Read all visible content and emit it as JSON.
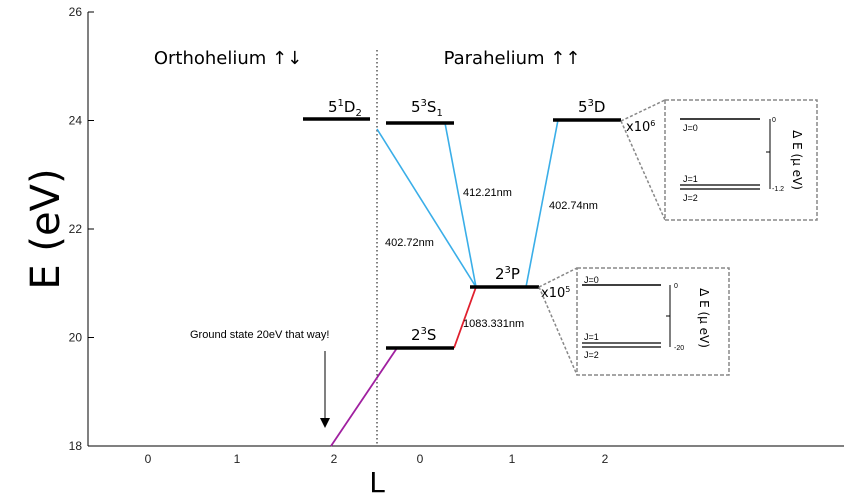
{
  "axes": {
    "y_title": "E (eV)",
    "x_title": "L",
    "y_ticks": [
      "18",
      "20",
      "22",
      "24",
      "26"
    ],
    "x_ticks_left": [
      "0",
      "1",
      "2"
    ],
    "x_ticks_right": [
      "0",
      "1",
      "2"
    ]
  },
  "sections": {
    "left": "Orthohelium ↑↓",
    "right": "Parahelium ↑↑"
  },
  "levels": {
    "n5_1D2": {
      "base": "5",
      "sup": "1",
      "letter": "D",
      "sub": "2",
      "energy_ev": 24.0
    },
    "n5_3S1": {
      "base": "5",
      "sup": "3",
      "letter": "S",
      "sub": "1",
      "energy_ev": 23.95
    },
    "n5_3D": {
      "base": "5",
      "sup": "3",
      "letter": "D",
      "energy_ev": 24.0
    },
    "n2_3P": {
      "base": "2",
      "sup": "3",
      "letter": "P",
      "energy_ev": 20.95
    },
    "n2_3S": {
      "base": "2",
      "sup": "3",
      "letter": "S",
      "energy_ev": 19.8
    }
  },
  "transitions": {
    "t1": "412.21nm",
    "t2": "402.72nm",
    "t3": "402.74nm",
    "t4": "1083.331nm"
  },
  "annotations": {
    "ground": "Ground state 20eV that way!"
  },
  "insets": {
    "top": {
      "mult_base": "x10",
      "mult_exp": "6",
      "levels": [
        "J=0",
        "J=1",
        "J=2"
      ],
      "axis_title": "Δ E (μ eV)",
      "tick_top": "0",
      "tick_bottom": "-1.2"
    },
    "bottom": {
      "mult_base": "x10",
      "mult_exp": "5",
      "levels": [
        "J=0",
        "J=1",
        "J=2"
      ],
      "axis_title": "Δ E (μ eV)",
      "tick_top": "0",
      "tick_bottom": "-20"
    }
  },
  "colors": {
    "blue": "#3aaee8",
    "red": "#e0202e",
    "purple": "#a020a0",
    "gray": "#888888"
  }
}
